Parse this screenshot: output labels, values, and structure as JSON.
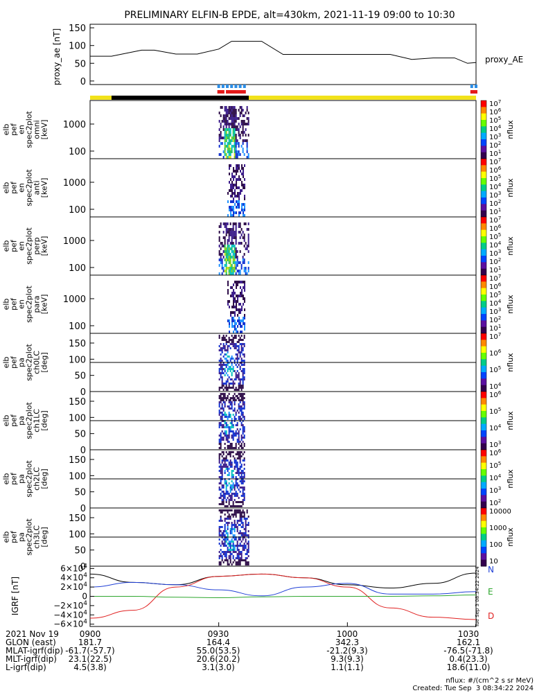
{
  "title": "PRELIMINARY ELFIN-B EPDE, alt=430km, 2021-11-19 09:00 to 10:30",
  "time_ticks": [
    "0900",
    "0930",
    "1000",
    "1030"
  ],
  "created": "Created: Tue Sep  3 08:34:22 2024",
  "units_note": "nflux: #/(cm^2 s sr MeV)",
  "side_stamp": "Tue Sep  3 08:34:22 2024",
  "colors": {
    "flag_yellow": "#f2e21a",
    "flag_black": "#000000",
    "spin_blue": "#2a8de6",
    "spin_red": "#e41a1a",
    "bx": "#1f3fd6",
    "by": "#2ca62c",
    "bz": "#e02020"
  },
  "chart_data": [
    {
      "type": "line",
      "name": "proxy_ae",
      "ylabel": "proxy_ae [nT]",
      "legend": "proxy_AE",
      "yticks": [
        "150",
        "100",
        "50",
        "0"
      ],
      "ylim": [
        -10,
        160
      ],
      "xlim": [
        "09:00",
        "10:30"
      ],
      "x": [
        "09:00",
        "09:05",
        "09:10",
        "09:12",
        "09:15",
        "09:20",
        "09:25",
        "09:30",
        "09:33",
        "09:36",
        "09:40",
        "09:45",
        "09:50",
        "09:55",
        "10:00",
        "10:05",
        "10:10",
        "10:15",
        "10:20",
        "10:25",
        "10:28",
        "10:30"
      ],
      "values": [
        70,
        70,
        82,
        87,
        87,
        76,
        76,
        90,
        112,
        112,
        112,
        75,
        75,
        75,
        75,
        75,
        75,
        61,
        65,
        65,
        50,
        52
      ]
    },
    {
      "type": "heatmap",
      "name": "elb_pef_en_spec2plot_omni",
      "ylabel": "elb pef en spec2plot omni [keV]",
      "yticks": [
        "1000",
        "100"
      ],
      "ylog": true,
      "colorbar": {
        "label": "nflux",
        "ticks": [
          "10^7",
          "10^6",
          "10^5",
          "10^4",
          "10^3",
          "10^2",
          "10^1"
        ]
      },
      "activity_window": [
        "09:30",
        "09:37"
      ]
    },
    {
      "type": "heatmap",
      "name": "elb_pef_en_spec2plot_anti",
      "ylabel": "elb pef en spec2plot anti [keV]",
      "yticks": [
        "1000",
        "100"
      ],
      "ylog": true,
      "colorbar": {
        "label": "nflux",
        "ticks": [
          "10^7",
          "10^6",
          "10^5",
          "10^4",
          "10^3",
          "10^2",
          "10^1"
        ]
      },
      "activity_window": [
        "09:32",
        "09:36"
      ]
    },
    {
      "type": "heatmap",
      "name": "elb_pef_en_spec2plot_perp",
      "ylabel": "elb pef en spec2plot perp [keV]",
      "yticks": [
        "1000",
        "100"
      ],
      "ylog": true,
      "colorbar": {
        "label": "nflux",
        "ticks": [
          "10^7",
          "10^6",
          "10^5",
          "10^4",
          "10^3",
          "10^2",
          "10^1"
        ]
      },
      "activity_window": [
        "09:30",
        "09:37"
      ]
    },
    {
      "type": "heatmap",
      "name": "elb_pef_en_spec2plot_para",
      "ylabel": "elb pef en spec2plot para [keV]",
      "yticks": [
        "1000",
        "100"
      ],
      "ylog": true,
      "colorbar": {
        "label": "nflux",
        "ticks": [
          "10^7",
          "10^6",
          "10^5",
          "10^4",
          "10^3",
          "10^2",
          "10^1"
        ]
      },
      "activity_window": [
        "09:32",
        "09:36"
      ]
    },
    {
      "type": "heatmap",
      "name": "elb_pef_pa_spec2plot_ch0LC",
      "ylabel": "elb pef pa spec2plot ch0LC [deg]",
      "yticks": [
        "150",
        "100",
        "50",
        "0"
      ],
      "ylim": [
        0,
        180
      ],
      "hline": 90,
      "colorbar": {
        "label": "nflux",
        "ticks": [
          "10^7",
          "10^6",
          "10^5",
          "10^4"
        ]
      },
      "activity_window": [
        "09:30",
        "09:36"
      ]
    },
    {
      "type": "heatmap",
      "name": "elb_pef_pa_spec2plot_ch1LC",
      "ylabel": "elb pef pa spec2plot ch1LC [deg]",
      "yticks": [
        "150",
        "100",
        "50",
        "0"
      ],
      "ylim": [
        0,
        180
      ],
      "hline": 90,
      "colorbar": {
        "label": "nflux",
        "ticks": [
          "10^6",
          "10^5",
          "10^4",
          "10^3"
        ]
      },
      "activity_window": [
        "09:30",
        "09:36"
      ]
    },
    {
      "type": "heatmap",
      "name": "elb_pef_pa_spec2plot_ch2LC",
      "ylabel": "elb pef pa spec2plot ch2LC [deg]",
      "yticks": [
        "150",
        "100",
        "50",
        "0"
      ],
      "ylim": [
        0,
        180
      ],
      "hline": 90,
      "colorbar": {
        "label": "nflux",
        "ticks": [
          "10^6",
          "10^5",
          "10^4",
          "10^3",
          "10^2"
        ]
      },
      "activity_window": [
        "09:30",
        "09:36"
      ]
    },
    {
      "type": "heatmap",
      "name": "elb_pef_pa_spec2plot_ch3LC",
      "ylabel": "elb pef pa spec2plot ch3LC [deg]",
      "yticks": [
        "150",
        "100",
        "50",
        "0"
      ],
      "ylim": [
        0,
        180
      ],
      "hline": 90,
      "colorbar": {
        "label": "nflux",
        "ticks": [
          "10000",
          "1000",
          "100",
          "10"
        ]
      },
      "activity_window": [
        "09:30",
        "09:37"
      ]
    },
    {
      "type": "line",
      "name": "IGRF",
      "ylabel": "IGRF [nT]",
      "yticks": [
        "6×10^4",
        "4×10^4",
        "2×10^4",
        "0",
        "−2×10^4",
        "−4×10^4",
        "−6×10^4"
      ],
      "ylim": [
        -65000,
        65000
      ],
      "legend": [
        "N",
        "E",
        "D"
      ],
      "x": [
        "09:00",
        "09:10",
        "09:20",
        "09:30",
        "09:40",
        "09:50",
        "10:00",
        "10:10",
        "10:20",
        "10:30"
      ],
      "series": [
        {
          "name": "N",
          "values": [
            48000,
            30000,
            25000,
            43000,
            48000,
            40000,
            25000,
            18000,
            28000,
            50000
          ]
        },
        {
          "name": "E",
          "values": [
            20000,
            30000,
            25000,
            14000,
            1000,
            20000,
            28000,
            5000,
            5000,
            10000
          ]
        },
        {
          "name": "D",
          "values": [
            -47000,
            -30000,
            20000,
            43000,
            48000,
            40000,
            20000,
            -25000,
            -45000,
            -50000
          ]
        },
        {
          "name": "",
          "values": [
            0,
            0,
            -2000,
            -3000,
            -1000,
            0,
            0,
            0,
            1000,
            3000
          ]
        }
      ]
    }
  ],
  "footer": {
    "rows": [
      {
        "label": "2021 Nov 19",
        "vals": [
          "0900",
          "0930",
          "1000",
          "1030"
        ]
      },
      {
        "label": "GLON (east)",
        "vals": [
          "181.7",
          "164.4",
          "342.3",
          "162.1"
        ]
      },
      {
        "label": "MLAT-igrf(dip)",
        "vals": [
          "-61.7(-57.7)",
          "55.0(53.5)",
          "-21.2(9.3)",
          "-76.5(-71.8)"
        ]
      },
      {
        "label": "MLT-igrf(dip)",
        "vals": [
          "23.1(22.5)",
          "20.6(20.2)",
          "9.3(9.3)",
          "0.4(23.3)"
        ]
      },
      {
        "label": "L-igrf(dip)",
        "vals": [
          "4.5(3.8)",
          "3.1(3.0)",
          "1.1(1.1)",
          "18.6(11.0)"
        ]
      }
    ]
  }
}
